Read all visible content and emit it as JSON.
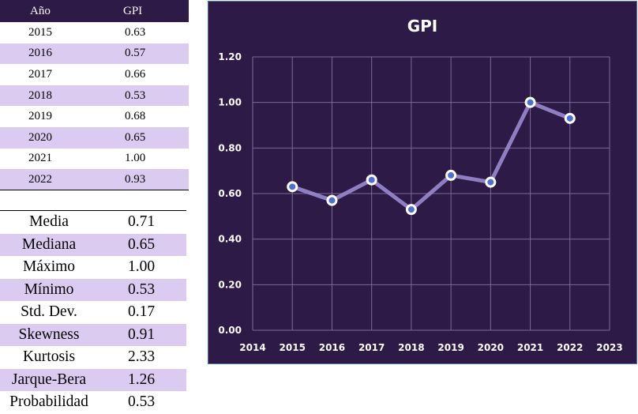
{
  "table": {
    "header": {
      "year": "Año",
      "value": "GPI"
    },
    "rows": [
      {
        "year": "2015",
        "value": "0.63"
      },
      {
        "year": "2016",
        "value": "0.57"
      },
      {
        "year": "2017",
        "value": "0.66"
      },
      {
        "year": "2018",
        "value": "0.53"
      },
      {
        "year": "2019",
        "value": "0.68"
      },
      {
        "year": "2020",
        "value": "0.65"
      },
      {
        "year": "2021",
        "value": "1.00"
      },
      {
        "year": "2022",
        "value": "0.93"
      }
    ]
  },
  "stats": [
    {
      "label": "Media",
      "value": "0.71"
    },
    {
      "label": "Mediana",
      "value": "0.65"
    },
    {
      "label": "Máximo",
      "value": "1.00"
    },
    {
      "label": "Mínimo",
      "value": "0.53"
    },
    {
      "label": "Std. Dev.",
      "value": "0.17"
    },
    {
      "label": "Skewness",
      "value": "0.91"
    },
    {
      "label": "Kurtosis",
      "value": "2.33"
    },
    {
      "label": "Jarque-Bera",
      "value": "1.26"
    },
    {
      "label": "Probabilidad",
      "value": "0.53"
    }
  ],
  "colors": {
    "panel_bg": "#2e1a47",
    "row_alt": "#dccbf0",
    "line": "#9b8ad0",
    "marker_fill": "#4b6fd6",
    "marker_stroke": "#ffffff",
    "text": "#ffffff"
  },
  "chart_data": {
    "type": "line",
    "title": "GPI",
    "x": [
      2015,
      2016,
      2017,
      2018,
      2019,
      2020,
      2021,
      2022
    ],
    "series": [
      {
        "values": [
          0.63,
          0.57,
          0.66,
          0.53,
          0.68,
          0.65,
          1.0,
          0.93
        ]
      }
    ],
    "xlim": [
      2014,
      2023
    ],
    "ylim": [
      0,
      1.2
    ],
    "x_ticks": [
      "2014",
      "2015",
      "2016",
      "2017",
      "2018",
      "2019",
      "2020",
      "2021",
      "2022",
      "2023"
    ],
    "y_ticks": [
      "0.00",
      "0.20",
      "0.40",
      "0.60",
      "0.80",
      "1.00",
      "1.20"
    ],
    "grid": true,
    "legend": false
  }
}
